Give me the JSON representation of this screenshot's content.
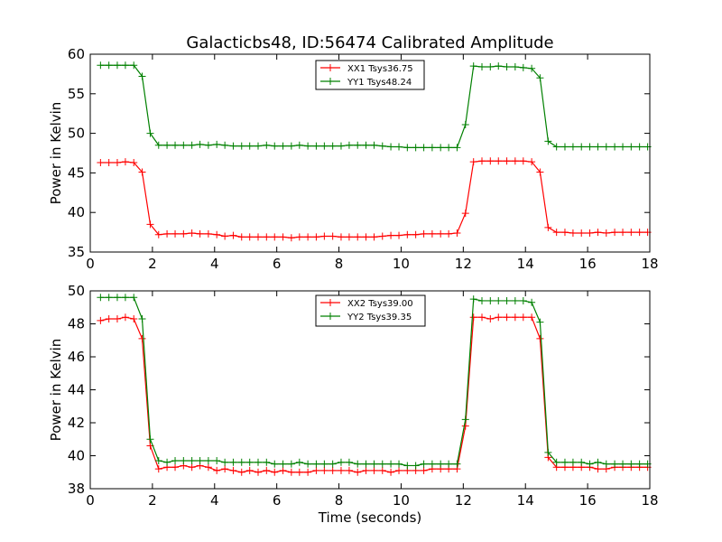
{
  "figure": {
    "title": "Galacticbs48, ID:56474 Calibrated Amplitude",
    "xlabel": "Time (seconds)"
  },
  "chart_data": [
    {
      "type": "line",
      "title": "Galacticbs48, ID:56474 Calibrated Amplitude",
      "xlabel": "",
      "ylabel": "Power in Kelvin",
      "xlim": [
        0,
        18
      ],
      "ylim": [
        35,
        60
      ],
      "xticks": [
        0,
        2,
        4,
        6,
        8,
        10,
        12,
        14,
        16,
        18
      ],
      "yticks": [
        35,
        40,
        45,
        50,
        55,
        60
      ],
      "grid": false,
      "legend": "top-center",
      "x": [
        0.33,
        0.6,
        0.87,
        1.13,
        1.4,
        1.67,
        1.93,
        2.2,
        2.47,
        2.73,
        3.0,
        3.27,
        3.53,
        3.8,
        4.07,
        4.33,
        4.6,
        4.87,
        5.13,
        5.4,
        5.67,
        5.93,
        6.2,
        6.47,
        6.73,
        7.0,
        7.27,
        7.53,
        7.8,
        8.07,
        8.33,
        8.6,
        8.87,
        9.13,
        9.4,
        9.67,
        9.93,
        10.2,
        10.47,
        10.73,
        11.0,
        11.27,
        11.53,
        11.8,
        12.07,
        12.33,
        12.6,
        12.87,
        13.13,
        13.4,
        13.67,
        13.93,
        14.2,
        14.47,
        14.73,
        15.0,
        15.27,
        15.53,
        15.8,
        16.07,
        16.33,
        16.6,
        16.87,
        17.13,
        17.4,
        17.67,
        17.93
      ],
      "series": [
        {
          "name": "XX1 Tsys36.75",
          "color": "#ff0000",
          "values": [
            46.3,
            46.3,
            46.3,
            46.4,
            46.3,
            45.1,
            38.5,
            37.2,
            37.3,
            37.3,
            37.3,
            37.4,
            37.3,
            37.3,
            37.2,
            37.0,
            37.1,
            36.9,
            36.9,
            36.9,
            36.9,
            36.9,
            36.9,
            36.8,
            36.9,
            36.9,
            36.9,
            37.0,
            37.0,
            36.9,
            36.9,
            36.9,
            36.9,
            36.9,
            37.0,
            37.1,
            37.1,
            37.2,
            37.2,
            37.3,
            37.3,
            37.3,
            37.3,
            37.4,
            39.9,
            46.4,
            46.5,
            46.5,
            46.5,
            46.5,
            46.5,
            46.5,
            46.4,
            45.1,
            38.1,
            37.5,
            37.5,
            37.4,
            37.4,
            37.4,
            37.5,
            37.4,
            37.5,
            37.5,
            37.5,
            37.5,
            37.5
          ]
        },
        {
          "name": "YY1 Tsys48.24",
          "color": "#008000",
          "values": [
            58.6,
            58.6,
            58.6,
            58.6,
            58.6,
            57.2,
            50.0,
            48.5,
            48.5,
            48.5,
            48.5,
            48.5,
            48.6,
            48.5,
            48.6,
            48.5,
            48.4,
            48.4,
            48.4,
            48.4,
            48.5,
            48.4,
            48.4,
            48.4,
            48.5,
            48.4,
            48.4,
            48.4,
            48.4,
            48.4,
            48.5,
            48.5,
            48.5,
            48.5,
            48.4,
            48.3,
            48.3,
            48.2,
            48.2,
            48.2,
            48.2,
            48.2,
            48.2,
            48.2,
            51.1,
            58.5,
            58.4,
            58.4,
            58.5,
            58.4,
            58.4,
            58.3,
            58.2,
            57.0,
            49.0,
            48.3,
            48.3,
            48.3,
            48.3,
            48.3,
            48.3,
            48.3,
            48.3,
            48.3,
            48.3,
            48.3,
            48.3
          ]
        }
      ]
    },
    {
      "type": "line",
      "title": "",
      "xlabel": "Time (seconds)",
      "ylabel": "Power in Kelvin",
      "xlim": [
        0,
        18
      ],
      "ylim": [
        38,
        50
      ],
      "xticks": [
        0,
        2,
        4,
        6,
        8,
        10,
        12,
        14,
        16,
        18
      ],
      "yticks": [
        38,
        40,
        42,
        44,
        46,
        48,
        50
      ],
      "grid": false,
      "legend": "top-center",
      "x": [
        0.33,
        0.6,
        0.87,
        1.13,
        1.4,
        1.67,
        1.93,
        2.2,
        2.47,
        2.73,
        3.0,
        3.27,
        3.53,
        3.8,
        4.07,
        4.33,
        4.6,
        4.87,
        5.13,
        5.4,
        5.67,
        5.93,
        6.2,
        6.47,
        6.73,
        7.0,
        7.27,
        7.53,
        7.8,
        8.07,
        8.33,
        8.6,
        8.87,
        9.13,
        9.4,
        9.67,
        9.93,
        10.2,
        10.47,
        10.73,
        11.0,
        11.27,
        11.53,
        11.8,
        12.07,
        12.33,
        12.6,
        12.87,
        13.13,
        13.4,
        13.67,
        13.93,
        14.2,
        14.47,
        14.73,
        15.0,
        15.27,
        15.53,
        15.8,
        16.07,
        16.33,
        16.6,
        16.87,
        17.13,
        17.4,
        17.67,
        17.93
      ],
      "series": [
        {
          "name": "XX2 Tsys39.00",
          "color": "#ff0000",
          "values": [
            48.2,
            48.3,
            48.3,
            48.4,
            48.3,
            47.1,
            40.6,
            39.2,
            39.3,
            39.3,
            39.4,
            39.3,
            39.4,
            39.3,
            39.1,
            39.2,
            39.1,
            39.0,
            39.1,
            39.0,
            39.1,
            39.0,
            39.1,
            39.0,
            39.0,
            39.0,
            39.1,
            39.1,
            39.1,
            39.1,
            39.1,
            39.0,
            39.1,
            39.1,
            39.1,
            39.0,
            39.1,
            39.1,
            39.1,
            39.1,
            39.2,
            39.2,
            39.2,
            39.2,
            41.8,
            48.4,
            48.4,
            48.3,
            48.4,
            48.4,
            48.4,
            48.4,
            48.4,
            47.1,
            39.9,
            39.3,
            39.3,
            39.3,
            39.3,
            39.3,
            39.2,
            39.2,
            39.3,
            39.3,
            39.3,
            39.3,
            39.3
          ]
        },
        {
          "name": "YY2 Tsys39.35",
          "color": "#008000",
          "values": [
            49.6,
            49.6,
            49.6,
            49.6,
            49.6,
            48.3,
            41.0,
            39.7,
            39.6,
            39.7,
            39.7,
            39.7,
            39.7,
            39.7,
            39.7,
            39.6,
            39.6,
            39.6,
            39.6,
            39.6,
            39.6,
            39.5,
            39.5,
            39.5,
            39.6,
            39.5,
            39.5,
            39.5,
            39.5,
            39.6,
            39.6,
            39.5,
            39.5,
            39.5,
            39.5,
            39.5,
            39.5,
            39.4,
            39.4,
            39.5,
            39.5,
            39.5,
            39.5,
            39.5,
            42.2,
            49.5,
            49.4,
            49.4,
            49.4,
            49.4,
            49.4,
            49.4,
            49.3,
            48.1,
            40.2,
            39.6,
            39.6,
            39.6,
            39.6,
            39.5,
            39.6,
            39.5,
            39.5,
            39.5,
            39.5,
            39.5,
            39.5
          ]
        }
      ]
    }
  ]
}
